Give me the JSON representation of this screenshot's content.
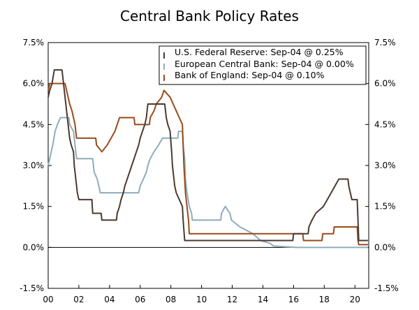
{
  "chart_data": {
    "type": "line",
    "title": "Central Bank Policy Rates",
    "xlabel": "",
    "ylabel": "",
    "xlim": [
      2000,
      2020.9
    ],
    "ylim": [
      -1.5,
      7.5
    ],
    "y_ticks": [
      -1.5,
      0.0,
      1.5,
      3.0,
      4.5,
      6.0,
      7.5
    ],
    "y_tick_labels": [
      "-1.5%",
      "0.0%",
      "1.5%",
      "3.0%",
      "4.5%",
      "6.0%",
      "7.5%"
    ],
    "x_ticks": [
      2000,
      2002,
      2004,
      2006,
      2008,
      2010,
      2012,
      2014,
      2016,
      2018,
      2020
    ],
    "x_tick_labels": [
      "00",
      "02",
      "04",
      "06",
      "08",
      "10",
      "12",
      "14",
      "16",
      "18",
      "20"
    ],
    "zero_line": 0.0,
    "legend_position": "top-right",
    "series": [
      {
        "name": "U.S. Federal Reserve: Sep-04 @ 0.25%",
        "color": "#4a3a32",
        "points": [
          [
            2000.0,
            5.5
          ],
          [
            2000.1,
            5.75
          ],
          [
            2000.25,
            6.0
          ],
          [
            2000.4,
            6.5
          ],
          [
            2000.9,
            6.5
          ],
          [
            2001.0,
            6.0
          ],
          [
            2001.1,
            5.5
          ],
          [
            2001.2,
            5.0
          ],
          [
            2001.3,
            4.5
          ],
          [
            2001.4,
            4.0
          ],
          [
            2001.5,
            3.75
          ],
          [
            2001.65,
            3.5
          ],
          [
            2001.7,
            3.0
          ],
          [
            2001.8,
            2.5
          ],
          [
            2001.9,
            2.0
          ],
          [
            2002.0,
            1.75
          ],
          [
            2002.85,
            1.75
          ],
          [
            2002.9,
            1.25
          ],
          [
            2003.45,
            1.25
          ],
          [
            2003.5,
            1.0
          ],
          [
            2004.45,
            1.0
          ],
          [
            2004.5,
            1.25
          ],
          [
            2004.65,
            1.5
          ],
          [
            2004.75,
            1.75
          ],
          [
            2004.9,
            2.0
          ],
          [
            2005.0,
            2.25
          ],
          [
            2005.15,
            2.5
          ],
          [
            2005.3,
            2.75
          ],
          [
            2005.45,
            3.0
          ],
          [
            2005.6,
            3.25
          ],
          [
            2005.75,
            3.5
          ],
          [
            2005.9,
            3.75
          ],
          [
            2006.0,
            4.0
          ],
          [
            2006.15,
            4.25
          ],
          [
            2006.3,
            4.5
          ],
          [
            2006.4,
            4.75
          ],
          [
            2006.5,
            5.25
          ],
          [
            2007.6,
            5.25
          ],
          [
            2007.7,
            4.75
          ],
          [
            2007.8,
            4.5
          ],
          [
            2007.95,
            4.25
          ],
          [
            2008.05,
            3.5
          ],
          [
            2008.1,
            3.0
          ],
          [
            2008.25,
            2.25
          ],
          [
            2008.35,
            2.0
          ],
          [
            2008.75,
            1.5
          ],
          [
            2008.8,
            1.0
          ],
          [
            2008.9,
            0.25
          ],
          [
            2015.95,
            0.25
          ],
          [
            2016.0,
            0.5
          ],
          [
            2016.95,
            0.5
          ],
          [
            2017.0,
            0.75
          ],
          [
            2017.2,
            1.0
          ],
          [
            2017.45,
            1.25
          ],
          [
            2017.95,
            1.5
          ],
          [
            2018.2,
            1.75
          ],
          [
            2018.45,
            2.0
          ],
          [
            2018.7,
            2.25
          ],
          [
            2018.95,
            2.5
          ],
          [
            2019.55,
            2.5
          ],
          [
            2019.6,
            2.25
          ],
          [
            2019.7,
            2.0
          ],
          [
            2019.8,
            1.75
          ],
          [
            2020.15,
            1.75
          ],
          [
            2020.2,
            1.0
          ],
          [
            2020.25,
            0.25
          ],
          [
            2020.85,
            0.25
          ]
        ]
      },
      {
        "name": "European Central Bank: Sep-04 @ 0.00%",
        "color": "#8facbc",
        "points": [
          [
            2000.0,
            3.0
          ],
          [
            2000.1,
            3.25
          ],
          [
            2000.2,
            3.5
          ],
          [
            2000.3,
            3.75
          ],
          [
            2000.45,
            4.25
          ],
          [
            2000.6,
            4.5
          ],
          [
            2000.8,
            4.75
          ],
          [
            2001.35,
            4.75
          ],
          [
            2001.4,
            4.5
          ],
          [
            2001.65,
            4.25
          ],
          [
            2001.75,
            3.75
          ],
          [
            2001.85,
            3.25
          ],
          [
            2002.9,
            3.25
          ],
          [
            2003.0,
            2.75
          ],
          [
            2003.2,
            2.5
          ],
          [
            2003.4,
            2.0
          ],
          [
            2005.9,
            2.0
          ],
          [
            2006.0,
            2.25
          ],
          [
            2006.2,
            2.5
          ],
          [
            2006.4,
            2.75
          ],
          [
            2006.5,
            3.0
          ],
          [
            2006.65,
            3.25
          ],
          [
            2006.9,
            3.5
          ],
          [
            2007.2,
            3.75
          ],
          [
            2007.45,
            4.0
          ],
          [
            2008.45,
            4.0
          ],
          [
            2008.5,
            4.25
          ],
          [
            2008.75,
            4.25
          ],
          [
            2008.8,
            3.75
          ],
          [
            2008.9,
            3.25
          ],
          [
            2008.95,
            2.5
          ],
          [
            2009.05,
            2.0
          ],
          [
            2009.2,
            1.5
          ],
          [
            2009.35,
            1.25
          ],
          [
            2009.4,
            1.0
          ],
          [
            2011.25,
            1.0
          ],
          [
            2011.3,
            1.25
          ],
          [
            2011.55,
            1.5
          ],
          [
            2011.85,
            1.25
          ],
          [
            2011.95,
            1.0
          ],
          [
            2012.5,
            0.75
          ],
          [
            2013.35,
            0.5
          ],
          [
            2013.85,
            0.25
          ],
          [
            2014.45,
            0.15
          ],
          [
            2014.7,
            0.05
          ],
          [
            2016.2,
            0.0
          ],
          [
            2020.85,
            0.0
          ]
        ]
      },
      {
        "name": "Bank of England: Sep-04 @ 0.10%",
        "color": "#9b4a1a",
        "points": [
          [
            2000.0,
            5.75
          ],
          [
            2000.1,
            6.0
          ],
          [
            2001.1,
            6.0
          ],
          [
            2001.2,
            5.75
          ],
          [
            2001.3,
            5.5
          ],
          [
            2001.4,
            5.25
          ],
          [
            2001.55,
            5.0
          ],
          [
            2001.65,
            4.75
          ],
          [
            2001.75,
            4.5
          ],
          [
            2001.85,
            4.0
          ],
          [
            2003.1,
            4.0
          ],
          [
            2003.15,
            3.75
          ],
          [
            2003.5,
            3.5
          ],
          [
            2003.85,
            3.75
          ],
          [
            2004.1,
            4.0
          ],
          [
            2004.35,
            4.25
          ],
          [
            2004.5,
            4.5
          ],
          [
            2004.65,
            4.75
          ],
          [
            2005.6,
            4.75
          ],
          [
            2005.65,
            4.5
          ],
          [
            2006.6,
            4.5
          ],
          [
            2006.65,
            4.75
          ],
          [
            2006.9,
            5.0
          ],
          [
            2007.05,
            5.25
          ],
          [
            2007.4,
            5.5
          ],
          [
            2007.55,
            5.75
          ],
          [
            2007.95,
            5.5
          ],
          [
            2008.15,
            5.25
          ],
          [
            2008.35,
            5.0
          ],
          [
            2008.75,
            4.5
          ],
          [
            2008.85,
            3.0
          ],
          [
            2008.95,
            2.0
          ],
          [
            2009.05,
            1.5
          ],
          [
            2009.15,
            1.0
          ],
          [
            2009.2,
            0.5
          ],
          [
            2016.6,
            0.5
          ],
          [
            2016.65,
            0.25
          ],
          [
            2017.85,
            0.25
          ],
          [
            2017.9,
            0.5
          ],
          [
            2018.6,
            0.5
          ],
          [
            2018.65,
            0.75
          ],
          [
            2020.15,
            0.75
          ],
          [
            2020.2,
            0.25
          ],
          [
            2020.25,
            0.1
          ],
          [
            2020.85,
            0.1
          ]
        ]
      }
    ]
  }
}
